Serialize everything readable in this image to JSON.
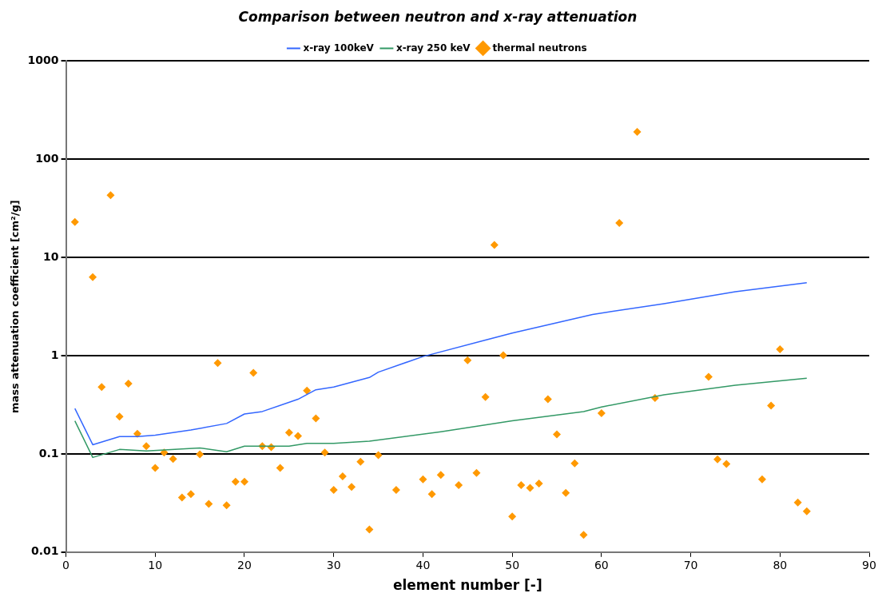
{
  "chart_data": {
    "type": "scatter",
    "title": "Comparison between neutron and x-ray attenuation",
    "xlabel": "element number [-]",
    "ylabel": "mass attenuation coefficient [cm²/g]",
    "log": "y",
    "grid": "y",
    "legend": "top",
    "xlim": [
      0,
      90
    ],
    "xticks": [
      0,
      10,
      20,
      30,
      40,
      50,
      60,
      70,
      80,
      90
    ],
    "ylim": [
      0.01,
      1000
    ],
    "yticks": [
      0.01,
      0.1,
      1,
      10,
      100,
      1000
    ],
    "series": [
      {
        "name": "x-ray 100keV",
        "type": "line",
        "marker": "none",
        "line_style": "solid",
        "color": "#3366ff",
        "x": [
          1,
          3,
          6,
          8,
          10,
          14,
          18,
          20,
          22,
          26,
          28,
          30,
          34,
          35,
          40,
          47,
          50,
          59,
          67,
          75,
          83
        ],
        "values": [
          0.29,
          0.124,
          0.15,
          0.15,
          0.155,
          0.175,
          0.204,
          0.255,
          0.27,
          0.36,
          0.45,
          0.48,
          0.6,
          0.68,
          0.98,
          1.44,
          1.7,
          2.63,
          3.39,
          4.48,
          5.54
        ]
      },
      {
        "name": "x-ray 250 keV",
        "type": "line",
        "marker": "none",
        "line_style": "solid",
        "color": "#339966",
        "x": [
          1,
          3,
          6,
          9,
          15,
          18,
          20,
          25,
          27,
          30,
          34,
          42,
          50,
          58,
          60,
          67,
          75,
          83
        ],
        "values": [
          0.217,
          0.092,
          0.111,
          0.107,
          0.115,
          0.105,
          0.12,
          0.12,
          0.128,
          0.128,
          0.135,
          0.168,
          0.217,
          0.27,
          0.3,
          0.4,
          0.5,
          0.59
        ]
      },
      {
        "name": "thermal neutrons",
        "type": "scatter",
        "marker": "diamond",
        "color": "#ff9900",
        "x": [
          1,
          3,
          4,
          5,
          6,
          7,
          8,
          9,
          10,
          11,
          12,
          13,
          14,
          15,
          16,
          17,
          18,
          19,
          20,
          21,
          22,
          23,
          24,
          25,
          26,
          27,
          28,
          29,
          30,
          31,
          32,
          33,
          34,
          35,
          37,
          40,
          41,
          42,
          44,
          45,
          46,
          47,
          48,
          49,
          50,
          51,
          52,
          53,
          54,
          55,
          56,
          57,
          58,
          60,
          62,
          64,
          66,
          72,
          73,
          74,
          78,
          79,
          80,
          82,
          83
        ],
        "values": [
          23,
          6.3,
          0.48,
          43,
          0.24,
          0.52,
          0.16,
          0.12,
          0.072,
          0.103,
          0.089,
          0.036,
          0.039,
          0.099,
          0.031,
          0.84,
          0.03,
          0.052,
          0.052,
          0.67,
          0.12,
          0.117,
          0.072,
          0.165,
          0.152,
          0.44,
          0.23,
          0.103,
          0.043,
          0.059,
          0.046,
          0.083,
          0.017,
          0.097,
          0.043,
          0.055,
          0.039,
          0.061,
          0.048,
          0.9,
          0.064,
          0.38,
          13.4,
          1.01,
          0.023,
          0.048,
          0.045,
          0.05,
          0.36,
          0.158,
          0.04,
          0.08,
          0.015,
          0.26,
          22.5,
          190,
          0.37,
          0.61,
          0.088,
          0.079,
          0.055,
          0.31,
          1.16,
          0.032,
          0.026
        ]
      }
    ]
  }
}
